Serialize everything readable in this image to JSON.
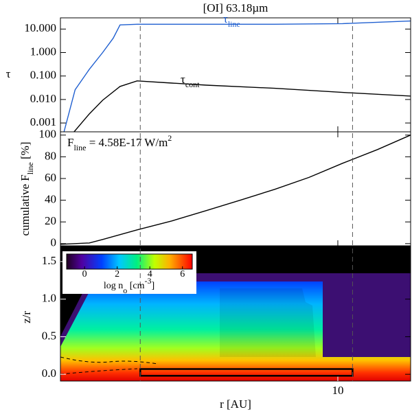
{
  "chart_data": [
    {
      "type": "line",
      "title": "[OI] 63.18µm",
      "ylabel": "τ",
      "yscale": "log",
      "xscale": "log",
      "ylim": [
        0.00042,
        30
      ],
      "yticks": [
        0.001,
        {
          "value": 0.01,
          "label": "0.010"
        },
        {
          "value": 0.1,
          "label": "0.100"
        },
        {
          "value": 1,
          "label": "1.000"
        },
        {
          "value": 10,
          "label": "10.000"
        }
      ],
      "vlines": [
        1.94,
        11.3
      ],
      "series": [
        {
          "name": "τ",
          "name_sub": "line",
          "color": "#1f5fd0",
          "x": [
            1.03,
            1.13,
            1.27,
            1.42,
            1.55,
            1.64,
            1.89,
            3.35,
            5.92,
            10.4,
            18.3
          ],
          "values": [
            0.00042,
            0.026,
            0.19,
            1.0,
            4.1,
            15,
            16,
            16,
            16,
            17,
            22
          ]
        },
        {
          "name": "τ",
          "name_sub": "cont",
          "color": "#000000",
          "x": [
            1.12,
            1.27,
            1.42,
            1.64,
            1.89,
            2.52,
            3.35,
            5.92,
            10.4,
            18.3
          ],
          "values": [
            0.00042,
            0.0024,
            0.0093,
            0.036,
            0.062,
            0.05,
            0.041,
            0.03,
            0.02,
            0.014
          ]
        }
      ]
    },
    {
      "type": "line",
      "ylabel": [
        "cumulative F",
        "line",
        " [%]"
      ],
      "annotation": [
        "F",
        "line",
        " = 4.58E-17 W/m",
        "2"
      ],
      "ylim": [
        -2,
        103
      ],
      "yticks": [
        0,
        20,
        40,
        60,
        80,
        100
      ],
      "series": [
        {
          "color": "#000000",
          "x": [
            1.0,
            1.27,
            1.42,
            1.89,
            2.52,
            3.35,
            4.45,
            5.92,
            7.87,
            10.4,
            13.9,
            18.3
          ],
          "values": [
            -0.6,
            0.6,
            3.8,
            12.7,
            20.9,
            30.4,
            40,
            50,
            61,
            74,
            86.7,
            100
          ]
        }
      ]
    },
    {
      "type": "heatmap",
      "ylabel": "z/r",
      "xlabel": "r [AU]",
      "xscale": "log",
      "xlim": [
        1,
        18.3
      ],
      "xticks": [
        10
      ],
      "ylim": [
        -0.09,
        1.71
      ],
      "yticks": [
        {
          "value": 0,
          "label": "0.0"
        },
        {
          "value": 0.5,
          "label": "0.5"
        },
        {
          "value": 1,
          "label": "1.0"
        },
        {
          "value": 1.5,
          "label": "1.5"
        }
      ],
      "box": {
        "x": [
          1.94,
          11.3
        ],
        "y": [
          -0.02,
          0.07
        ]
      },
      "colorbar": {
        "lim": [
          -1.1,
          6.6
        ],
        "ticks": [
          0,
          2,
          4,
          6
        ],
        "label": [
          "log n",
          "o",
          " [cm",
          "-3",
          "]"
        ]
      }
    }
  ]
}
